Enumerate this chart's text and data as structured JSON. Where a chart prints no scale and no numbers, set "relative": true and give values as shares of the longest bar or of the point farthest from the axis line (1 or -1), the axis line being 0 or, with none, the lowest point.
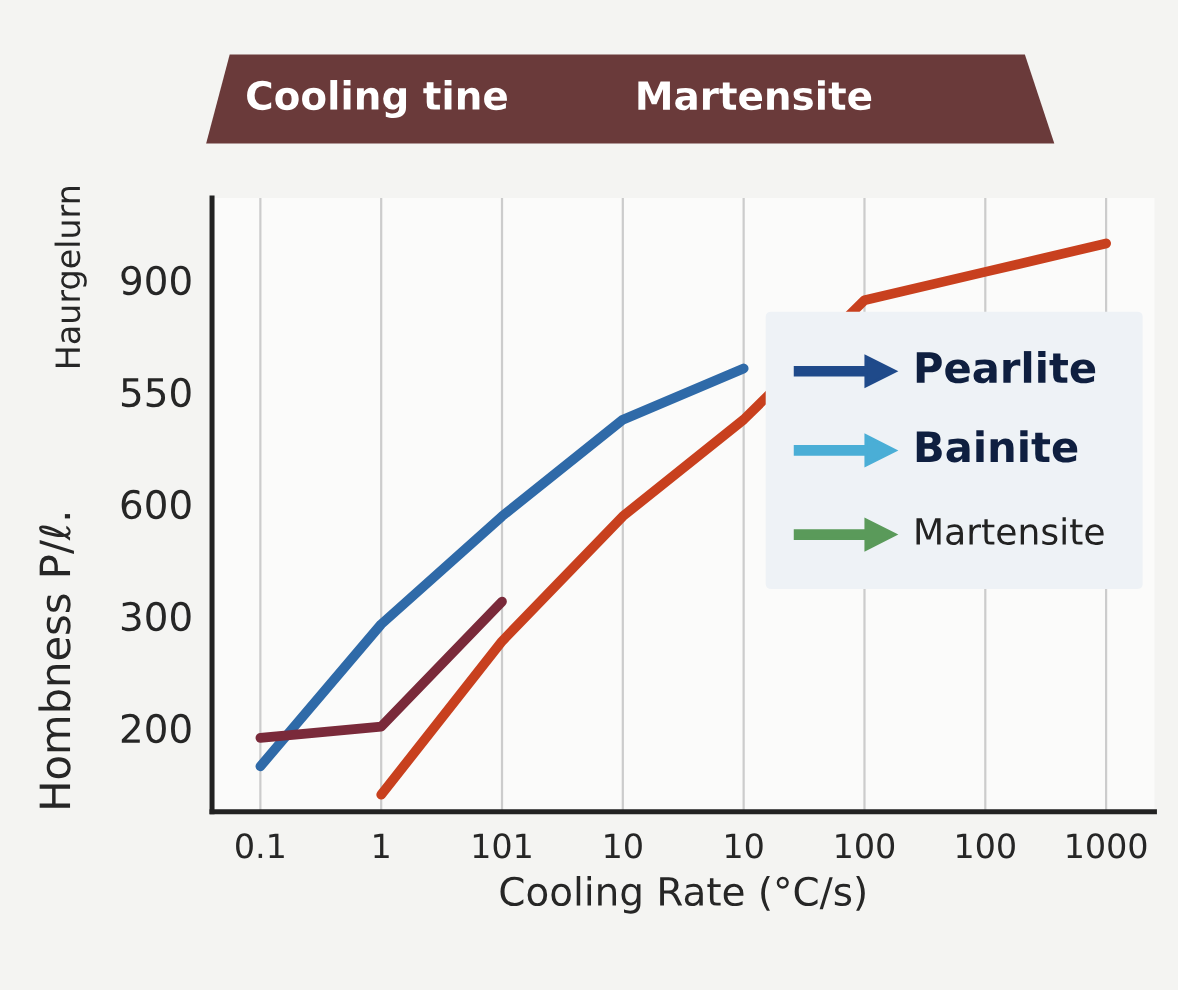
{
  "chart_data": {
    "type": "line",
    "xlabel": "Cooling Rate (°C/s)",
    "ylabel": "Hombness P/ℓ.",
    "annotations": [
      "Cooling tine",
      "Martensite",
      "Haurgelurn",
      "Pearlite",
      "Bainite",
      "Martensite",
      "900",
      "550",
      "600",
      "300",
      "200"
    ],
    "categories": [
      "0.1",
      "1",
      "101",
      "10",
      "10",
      "100",
      "100",
      "1000"
    ],
    "relative": true,
    "series": [
      {
        "color": "#2f6aa8",
        "values": [
          0.08,
          0.33,
          0.52,
          0.69,
          0.78,
          null,
          null,
          null
        ]
      },
      {
        "color": "#7a2a3a",
        "values": [
          0.13,
          0.15,
          0.37,
          null,
          null,
          null,
          null,
          null
        ]
      },
      {
        "color": "#c8401e",
        "values": [
          null,
          0.03,
          0.3,
          0.52,
          0.69,
          0.9,
          0.95,
          1.0
        ]
      }
    ],
    "grid": "x",
    "marker": "none",
    "line_style": "solid",
    "legend": false
  }
}
